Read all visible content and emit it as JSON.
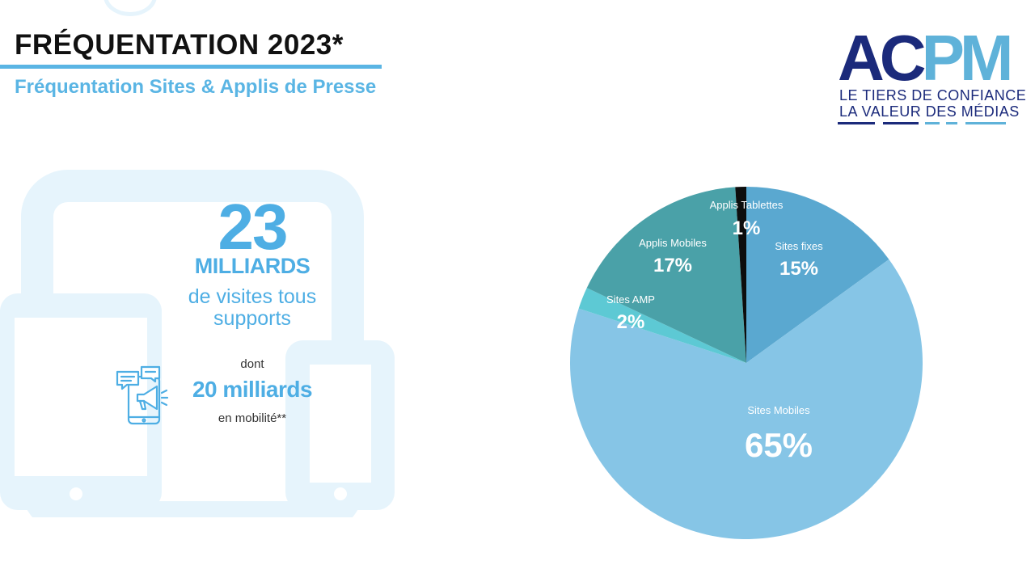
{
  "header": {
    "title": "FRÉQUENTATION 2023*",
    "subtitle": "Fréquentation Sites & Applis de Presse"
  },
  "logo": {
    "letters": [
      "A",
      "C",
      "P",
      "M"
    ],
    "line1": "LE TIERS DE CONFIANCE",
    "line2": "LA VALEUR DES MÉDIAS",
    "colors": {
      "dark": "#1b2a7b",
      "light": "#5fb2d9"
    }
  },
  "stats": {
    "total_value": "23",
    "total_unit": "MILLIARDS",
    "total_desc_line1": "de visites tous",
    "total_desc_line2": "supports",
    "dont": "dont",
    "mobile_value": "20 milliards",
    "mobile_note": "en mobilité**",
    "icon": "mobile-megaphone-icon"
  },
  "colors": {
    "accent": "#4eaee4",
    "device_bg": "#e6f4fc"
  },
  "chart_data": {
    "type": "pie",
    "start_angle_deg": 0,
    "direction": "clockwise",
    "slices": [
      {
        "name": "Sites fixes",
        "value": 15,
        "label": "15%",
        "color": "#5aa8d0"
      },
      {
        "name": "Sites Mobiles",
        "value": 65,
        "label": "65%",
        "color": "#86c5e6"
      },
      {
        "name": "Sites AMP",
        "value": 2,
        "label": "2%",
        "color": "#5dc9d4"
      },
      {
        "name": "Applis Mobiles",
        "value": 17,
        "label": "17%",
        "color": "#4aa1a8"
      },
      {
        "name": "Applis Tablettes",
        "value": 1,
        "label": "1%",
        "color": "#0d0d0d"
      }
    ]
  }
}
